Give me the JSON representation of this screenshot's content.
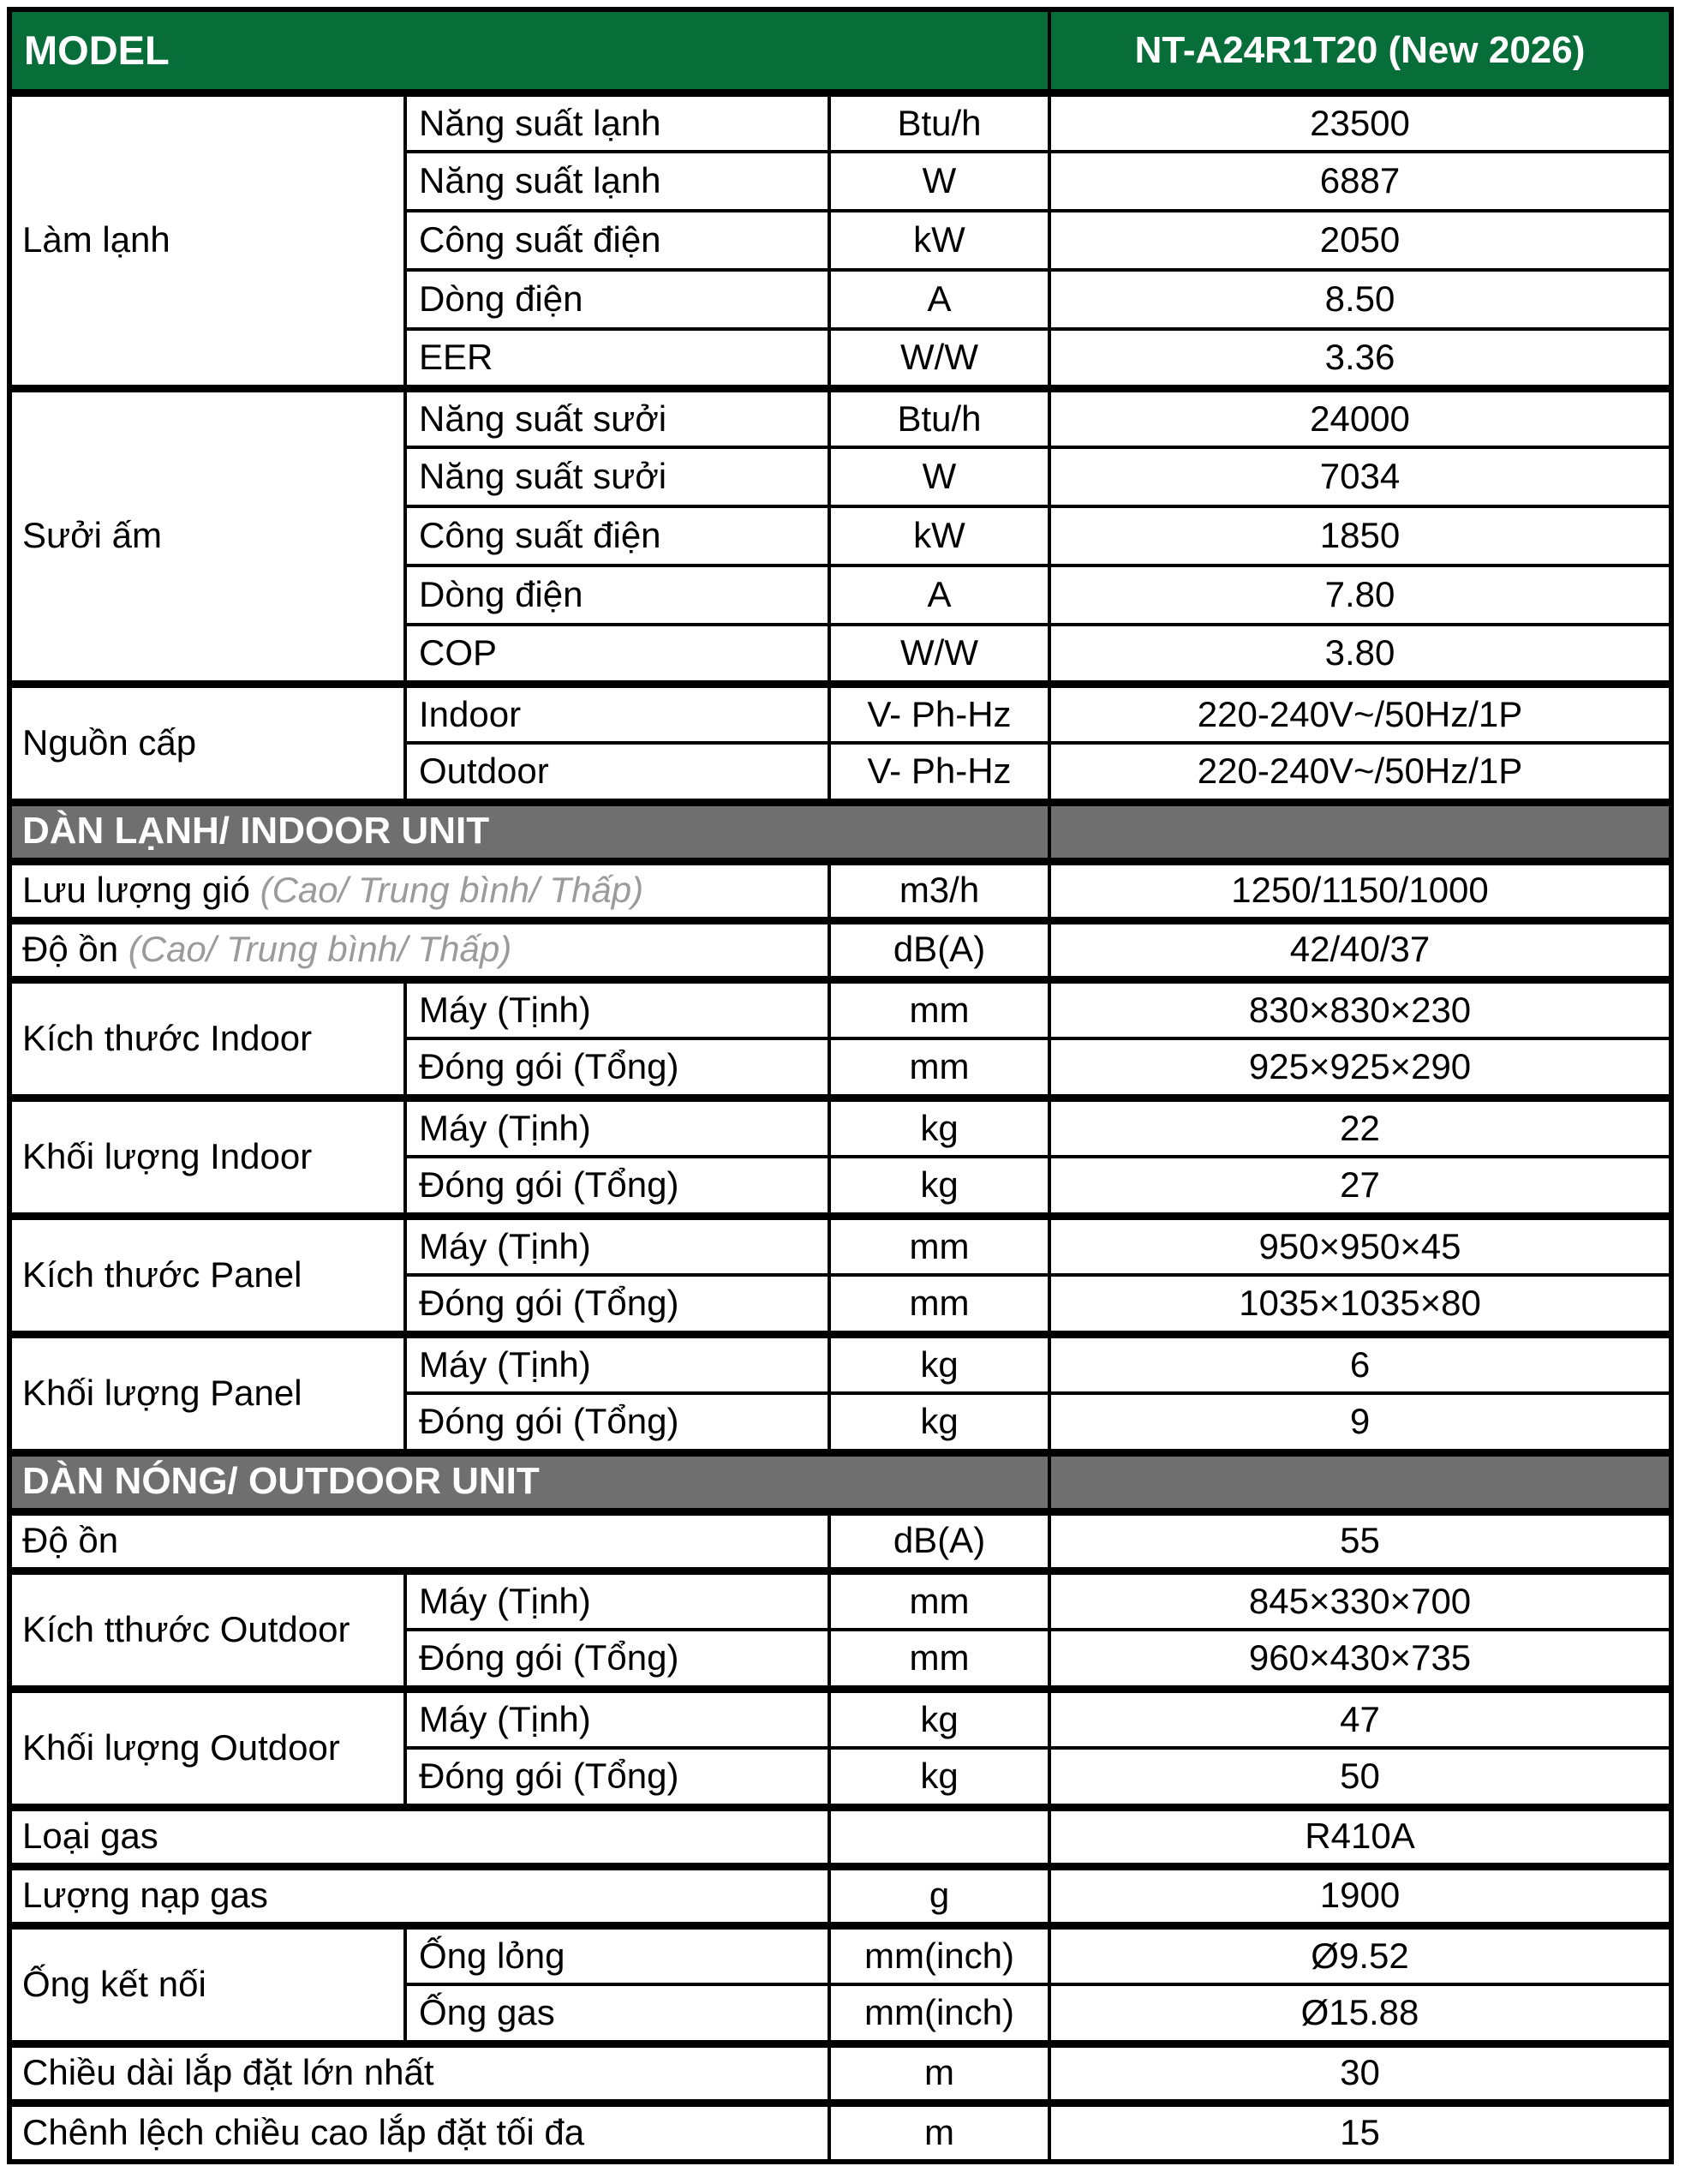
{
  "colors": {
    "header_green": "#076e3a",
    "section_gray": "#6f6f6f",
    "note_gray": "#9b9b9b",
    "border_black": "#000000",
    "text_black": "#000000",
    "header_text_white": "#ffffff"
  },
  "table": {
    "rows": [
      {
        "type": "header",
        "name": "header-row",
        "cells": [
          {
            "text": "MODEL",
            "colspan": 3,
            "cls": "model",
            "name": "model-label"
          },
          {
            "text": "NT-A24R1T20 (New 2026)",
            "cls": "modelval",
            "name": "model-value"
          }
        ]
      },
      {
        "name": "row-cooling-capacity-btu",
        "group_start": true,
        "cells": [
          {
            "text": "Làm lạnh",
            "rowspan": 5,
            "cls": "label",
            "name": "group-label-cooling"
          },
          {
            "text": "Năng suất lạnh",
            "cls": "sub",
            "name": "spec-label"
          },
          {
            "text": "Btu/h",
            "cls": "unit",
            "name": "spec-unit"
          },
          {
            "text": "23500",
            "cls": "val",
            "name": "spec-value"
          }
        ]
      },
      {
        "name": "row-cooling-capacity-w",
        "cells": [
          {
            "text": "Năng suất lạnh",
            "cls": "sub",
            "name": "spec-label"
          },
          {
            "text": "W",
            "cls": "unit",
            "name": "spec-unit"
          },
          {
            "text": "6887",
            "cls": "val",
            "name": "spec-value"
          }
        ]
      },
      {
        "name": "row-cooling-power-input",
        "cells": [
          {
            "text": "Công suất điện",
            "cls": "sub",
            "name": "spec-label"
          },
          {
            "text": "kW",
            "cls": "unit",
            "name": "spec-unit"
          },
          {
            "text": "2050",
            "cls": "val",
            "name": "spec-value"
          }
        ]
      },
      {
        "name": "row-cooling-current",
        "cells": [
          {
            "text": "Dòng điện",
            "cls": "sub",
            "name": "spec-label"
          },
          {
            "text": "A",
            "cls": "unit",
            "name": "spec-unit"
          },
          {
            "text": "8.50",
            "cls": "val",
            "name": "spec-value"
          }
        ]
      },
      {
        "name": "row-cooling-eer",
        "cells": [
          {
            "text": "EER",
            "cls": "sub",
            "name": "spec-label"
          },
          {
            "text": "W/W",
            "cls": "unit",
            "name": "spec-unit"
          },
          {
            "text": "3.36",
            "cls": "val",
            "name": "spec-value"
          }
        ]
      },
      {
        "name": "row-heating-capacity-btu",
        "group_start": true,
        "cells": [
          {
            "text": "Sưởi ấm",
            "rowspan": 5,
            "cls": "label",
            "name": "group-label-heating"
          },
          {
            "text": "Năng suất sưởi",
            "cls": "sub",
            "name": "spec-label"
          },
          {
            "text": "Btu/h",
            "cls": "unit",
            "name": "spec-unit"
          },
          {
            "text": "24000",
            "cls": "val",
            "name": "spec-value"
          }
        ]
      },
      {
        "name": "row-heating-capacity-w",
        "cells": [
          {
            "text": "Năng suất sưởi",
            "cls": "sub",
            "name": "spec-label"
          },
          {
            "text": "W",
            "cls": "unit",
            "name": "spec-unit"
          },
          {
            "text": "7034",
            "cls": "val",
            "name": "spec-value"
          }
        ]
      },
      {
        "name": "row-heating-power-input",
        "cells": [
          {
            "text": "Công suất điện",
            "cls": "sub",
            "name": "spec-label"
          },
          {
            "text": "kW",
            "cls": "unit",
            "name": "spec-unit"
          },
          {
            "text": "1850",
            "cls": "val",
            "name": "spec-value"
          }
        ]
      },
      {
        "name": "row-heating-current",
        "cells": [
          {
            "text": "Dòng điện",
            "cls": "sub",
            "name": "spec-label"
          },
          {
            "text": "A",
            "cls": "unit",
            "name": "spec-unit"
          },
          {
            "text": "7.80",
            "cls": "val",
            "name": "spec-value"
          }
        ]
      },
      {
        "name": "row-heating-cop",
        "cells": [
          {
            "text": "COP",
            "cls": "sub",
            "name": "spec-label"
          },
          {
            "text": "W/W",
            "cls": "unit",
            "name": "spec-unit"
          },
          {
            "text": "3.80",
            "cls": "val",
            "name": "spec-value"
          }
        ]
      },
      {
        "name": "row-power-supply-indoor",
        "group_start": true,
        "cells": [
          {
            "text": "Nguồn cấp",
            "rowspan": 2,
            "cls": "label",
            "name": "group-label-power-supply"
          },
          {
            "text": "Indoor",
            "cls": "sub",
            "name": "spec-label"
          },
          {
            "text": "V- Ph-Hz",
            "cls": "unit",
            "name": "spec-unit"
          },
          {
            "text": "220-240V~/50Hz/1P",
            "cls": "val",
            "name": "spec-value"
          }
        ]
      },
      {
        "name": "row-power-supply-outdoor",
        "cells": [
          {
            "text": "Outdoor",
            "cls": "sub",
            "name": "spec-label"
          },
          {
            "text": "V- Ph-Hz",
            "cls": "unit",
            "name": "spec-unit"
          },
          {
            "text": "220-240V~/50Hz/1P",
            "cls": "val",
            "name": "spec-value"
          }
        ]
      },
      {
        "type": "band",
        "name": "section-indoor-unit",
        "group_start": true,
        "cells": [
          {
            "text": "DÀN LẠNH/ INDOOR UNIT",
            "colspan": 3,
            "cls": "band",
            "name": "section-header-indoor"
          },
          {
            "text": "",
            "cls": "bandval",
            "name": "section-header-spacer"
          }
        ]
      },
      {
        "name": "row-air-flow",
        "group_start": true,
        "cells": [
          {
            "text": "Lưu lượng gió",
            "note": "(Cao/ Trung bình/ Thấp)",
            "colspan": 2,
            "cls": "label",
            "name": "spec-label-with-note"
          },
          {
            "text": "m3/h",
            "cls": "unit",
            "name": "spec-unit"
          },
          {
            "text": "1250/1150/1000",
            "cls": "val",
            "name": "spec-value"
          }
        ]
      },
      {
        "name": "row-indoor-noise",
        "group_start": true,
        "cells": [
          {
            "text": "Độ ồn",
            "note": "(Cao/ Trung bình/ Thấp)",
            "colspan": 2,
            "cls": "label",
            "name": "spec-label-with-note"
          },
          {
            "text": "dB(A)",
            "cls": "unit",
            "name": "spec-unit"
          },
          {
            "text": "42/40/37",
            "cls": "val",
            "name": "spec-value"
          }
        ]
      },
      {
        "name": "row-indoor-dim-net",
        "group_start": true,
        "cells": [
          {
            "text": "Kích thước Indoor",
            "rowspan": 2,
            "cls": "label",
            "name": "group-label-indoor-dimensions"
          },
          {
            "text": "Máy (Tịnh)",
            "cls": "sub",
            "name": "spec-label"
          },
          {
            "text": "mm",
            "cls": "unit",
            "name": "spec-unit"
          },
          {
            "text": "830×830×230",
            "cls": "val",
            "name": "spec-value"
          }
        ]
      },
      {
        "name": "row-indoor-dim-gross",
        "cells": [
          {
            "text": "Đóng gói (Tổng)",
            "cls": "sub",
            "name": "spec-label"
          },
          {
            "text": "mm",
            "cls": "unit",
            "name": "spec-unit"
          },
          {
            "text": "925×925×290",
            "cls": "val",
            "name": "spec-value"
          }
        ]
      },
      {
        "name": "row-indoor-weight-net",
        "group_start": true,
        "cells": [
          {
            "text": "Khối lượng Indoor",
            "rowspan": 2,
            "cls": "label",
            "name": "group-label-indoor-weight"
          },
          {
            "text": "Máy (Tịnh)",
            "cls": "sub",
            "name": "spec-label"
          },
          {
            "text": "kg",
            "cls": "unit",
            "name": "spec-unit"
          },
          {
            "text": "22",
            "cls": "val",
            "name": "spec-value"
          }
        ]
      },
      {
        "name": "row-indoor-weight-gross",
        "cells": [
          {
            "text": "Đóng gói (Tổng)",
            "cls": "sub",
            "name": "spec-label"
          },
          {
            "text": "kg",
            "cls": "unit",
            "name": "spec-unit"
          },
          {
            "text": "27",
            "cls": "val",
            "name": "spec-value"
          }
        ]
      },
      {
        "name": "row-panel-dim-net",
        "group_start": true,
        "cells": [
          {
            "text": "Kích thước Panel",
            "rowspan": 2,
            "cls": "label",
            "name": "group-label-panel-dimensions"
          },
          {
            "text": "Máy (Tịnh)",
            "cls": "sub",
            "name": "spec-label"
          },
          {
            "text": "mm",
            "cls": "unit",
            "name": "spec-unit"
          },
          {
            "text": "950×950×45",
            "cls": "val",
            "name": "spec-value"
          }
        ]
      },
      {
        "name": "row-panel-dim-gross",
        "cells": [
          {
            "text": "Đóng gói (Tổng)",
            "cls": "sub",
            "name": "spec-label"
          },
          {
            "text": "mm",
            "cls": "unit",
            "name": "spec-unit"
          },
          {
            "text": "1035×1035×80",
            "cls": "val",
            "name": "spec-value"
          }
        ]
      },
      {
        "name": "row-panel-weight-net",
        "group_start": true,
        "cells": [
          {
            "text": "Khối lượng Panel",
            "rowspan": 2,
            "cls": "label",
            "name": "group-label-panel-weight"
          },
          {
            "text": "Máy (Tịnh)",
            "cls": "sub",
            "name": "spec-label"
          },
          {
            "text": "kg",
            "cls": "unit",
            "name": "spec-unit"
          },
          {
            "text": "6",
            "cls": "val",
            "name": "spec-value"
          }
        ]
      },
      {
        "name": "row-panel-weight-gross",
        "cells": [
          {
            "text": "Đóng gói (Tổng)",
            "cls": "sub",
            "name": "spec-label"
          },
          {
            "text": "kg",
            "cls": "unit",
            "name": "spec-unit"
          },
          {
            "text": "9",
            "cls": "val",
            "name": "spec-value"
          }
        ]
      },
      {
        "type": "band",
        "name": "section-outdoor-unit",
        "group_start": true,
        "cells": [
          {
            "text": "DÀN NÓNG/ OUTDOOR UNIT",
            "colspan": 3,
            "cls": "band",
            "name": "section-header-outdoor"
          },
          {
            "text": "",
            "cls": "bandval",
            "name": "section-header-spacer"
          }
        ]
      },
      {
        "name": "row-outdoor-noise",
        "group_start": true,
        "cells": [
          {
            "text": "Độ ồn",
            "colspan": 2,
            "cls": "label",
            "name": "spec-label"
          },
          {
            "text": "dB(A)",
            "cls": "unit",
            "name": "spec-unit"
          },
          {
            "text": "55",
            "cls": "val",
            "name": "spec-value"
          }
        ]
      },
      {
        "name": "row-outdoor-dim-net",
        "group_start": true,
        "cells": [
          {
            "text": "Kích tthước Outdoor",
            "rowspan": 2,
            "cls": "label",
            "name": "group-label-outdoor-dimensions"
          },
          {
            "text": "Máy (Tịnh)",
            "cls": "sub",
            "name": "spec-label"
          },
          {
            "text": "mm",
            "cls": "unit",
            "name": "spec-unit"
          },
          {
            "text": "845×330×700",
            "cls": "val",
            "name": "spec-value"
          }
        ]
      },
      {
        "name": "row-outdoor-dim-gross",
        "cells": [
          {
            "text": "Đóng gói (Tổng)",
            "cls": "sub",
            "name": "spec-label"
          },
          {
            "text": "mm",
            "cls": "unit",
            "name": "spec-unit"
          },
          {
            "text": "960×430×735",
            "cls": "val",
            "name": "spec-value"
          }
        ]
      },
      {
        "name": "row-outdoor-weight-net",
        "group_start": true,
        "cells": [
          {
            "text": "Khối lượng Outdoor",
            "rowspan": 2,
            "cls": "label",
            "name": "group-label-outdoor-weight"
          },
          {
            "text": "Máy (Tịnh)",
            "cls": "sub",
            "name": "spec-label"
          },
          {
            "text": "kg",
            "cls": "unit",
            "name": "spec-unit"
          },
          {
            "text": "47",
            "cls": "val",
            "name": "spec-value"
          }
        ]
      },
      {
        "name": "row-outdoor-weight-gross",
        "cells": [
          {
            "text": "Đóng gói (Tổng)",
            "cls": "sub",
            "name": "spec-label"
          },
          {
            "text": "kg",
            "cls": "unit",
            "name": "spec-unit"
          },
          {
            "text": "50",
            "cls": "val",
            "name": "spec-value"
          }
        ]
      },
      {
        "name": "row-gas-type",
        "group_start": true,
        "cells": [
          {
            "text": "Loại gas",
            "colspan": 2,
            "cls": "label",
            "name": "spec-label"
          },
          {
            "text": "",
            "cls": "unit",
            "name": "spec-unit-empty"
          },
          {
            "text": "R410A",
            "cls": "val",
            "name": "spec-value"
          }
        ]
      },
      {
        "name": "row-gas-charge",
        "group_start": true,
        "cells": [
          {
            "text": "Lượng nạp gas",
            "colspan": 2,
            "cls": "label",
            "name": "spec-label"
          },
          {
            "text": "g",
            "cls": "unit",
            "name": "spec-unit"
          },
          {
            "text": "1900",
            "cls": "val",
            "name": "spec-value"
          }
        ]
      },
      {
        "name": "row-pipe-liquid",
        "group_start": true,
        "cells": [
          {
            "text": "Ống kết nối",
            "rowspan": 2,
            "cls": "label",
            "name": "group-label-connection-pipes"
          },
          {
            "text": "Ống lỏng",
            "cls": "sub",
            "name": "spec-label"
          },
          {
            "text": "mm(inch)",
            "cls": "unit",
            "name": "spec-unit"
          },
          {
            "text": "Ø9.52",
            "cls": "val",
            "name": "spec-value"
          }
        ]
      },
      {
        "name": "row-pipe-gas",
        "cells": [
          {
            "text": "Ống gas",
            "cls": "sub",
            "name": "spec-label"
          },
          {
            "text": "mm(inch)",
            "cls": "unit",
            "name": "spec-unit"
          },
          {
            "text": "Ø15.88",
            "cls": "val",
            "name": "spec-value"
          }
        ]
      },
      {
        "name": "row-max-pipe-length",
        "group_start": true,
        "cells": [
          {
            "text": "Chiều dài lắp đặt lớn nhất",
            "colspan": 2,
            "cls": "label",
            "name": "spec-label"
          },
          {
            "text": "m",
            "cls": "unit",
            "name": "spec-unit"
          },
          {
            "text": "30",
            "cls": "val",
            "name": "spec-value"
          }
        ]
      },
      {
        "name": "row-max-height-diff",
        "group_start": true,
        "cells": [
          {
            "text": "Chênh lệch chiều cao lắp đặt tối đa",
            "colspan": 2,
            "cls": "label",
            "name": "spec-label"
          },
          {
            "text": "m",
            "cls": "unit",
            "name": "spec-unit"
          },
          {
            "text": "15",
            "cls": "val",
            "name": "spec-value"
          }
        ]
      }
    ]
  }
}
